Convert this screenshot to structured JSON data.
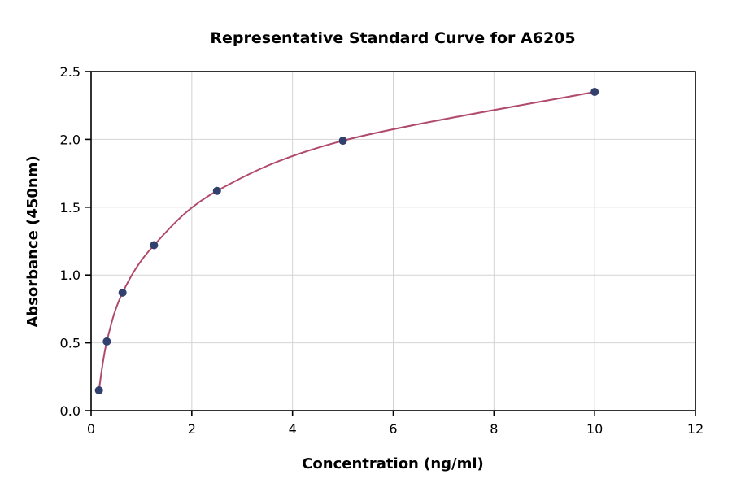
{
  "chart_data": {
    "type": "line",
    "title": "Representative Standard Curve for A6205",
    "xlabel": "Concentration (ng/ml)",
    "ylabel": "Absorbance (450nm)",
    "xlim": [
      0,
      12
    ],
    "ylim": [
      0,
      2.5
    ],
    "xticks": [
      0,
      2,
      4,
      6,
      8,
      10,
      12
    ],
    "xtick_labels": [
      "0",
      "2",
      "4",
      "6",
      "8",
      "10",
      "12"
    ],
    "yticks": [
      0.0,
      0.5,
      1.0,
      1.5,
      2.0,
      2.5
    ],
    "ytick_labels": [
      "0.0",
      "0.5",
      "1.0",
      "1.5",
      "2.0",
      "2.5"
    ],
    "grid": true,
    "grid_color": "#d4d4d4",
    "frame_color": "#000000",
    "series": [
      {
        "name": "standard-curve",
        "x": [
          0.156,
          0.3125,
          0.625,
          1.25,
          2.5,
          5,
          10
        ],
        "y": [
          0.15,
          0.51,
          0.87,
          1.22,
          1.62,
          1.99,
          2.35
        ],
        "line_color": "#b04a6b",
        "marker_color": "#32406e",
        "marker_radius": 5
      }
    ]
  }
}
